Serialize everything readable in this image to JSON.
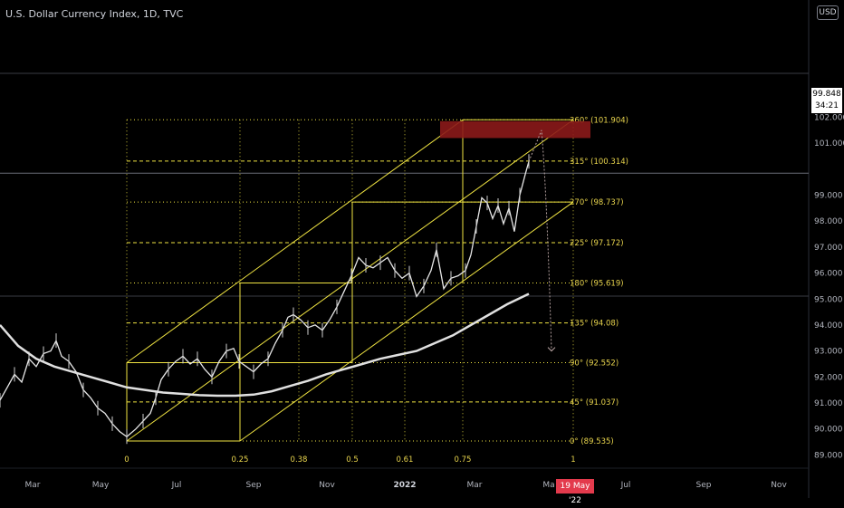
{
  "header": {
    "title": "U.S. Dollar Currency Index, 1D, TVC",
    "currency": "USD"
  },
  "price_marker": {
    "price": "99.848",
    "countdown": "34:21"
  },
  "date_marker": "19 May '22",
  "colors": {
    "background": "#000000",
    "fib_lines": "#f0e442",
    "ma_line": "#e0e0e0",
    "zone": "#8b1a1a",
    "projection": "#b5a1a0"
  },
  "chart_data": {
    "type": "line",
    "title": "U.S. Dollar Currency Index, 1D, TVC",
    "xlabel": "",
    "ylabel": "",
    "x_tick_labels": [
      "Mar",
      "May",
      "Jul",
      "Sep",
      "Nov",
      "2022",
      "Mar",
      "Ma",
      "Jul",
      "Sep",
      "Nov"
    ],
    "y_tick_labels": [
      "102.000",
      "101.000",
      "100.000",
      "99.000",
      "98.000",
      "97.000",
      "96.000",
      "95.000",
      "94.000",
      "93.000",
      "92.000",
      "91.000",
      "90.000",
      "89.000"
    ],
    "ylim": [
      88.85,
      102.5
    ],
    "fib_time_labels": [
      "0",
      "0.25",
      "0.38",
      "0.5",
      "0.61",
      "0.75",
      "1"
    ],
    "gann_levels": [
      {
        "label": "360° (101.904)",
        "value": 101.904
      },
      {
        "label": "315° (100.314)",
        "value": 100.314
      },
      {
        "label": "270° (98.737)",
        "value": 98.737
      },
      {
        "label": "225° (97.172)",
        "value": 97.172
      },
      {
        "label": "180° (95.619)",
        "value": 95.619
      },
      {
        "label": "135° (94.08)",
        "value": 94.08
      },
      {
        "label": "90° (92.552)",
        "value": 92.552
      },
      {
        "label": "45° (91.037)",
        "value": 91.037
      },
      {
        "label": "0° (89.535)",
        "value": 89.535
      }
    ],
    "resistance_zone": {
      "from": 101.2,
      "to": 101.85
    },
    "projected_target": 93.0,
    "series": [
      {
        "values": [
          [
            0,
            91.1
          ],
          [
            8,
            91.6
          ],
          [
            16,
            92.1
          ],
          [
            24,
            91.8
          ],
          [
            32,
            92.7
          ],
          [
            40,
            92.4
          ],
          [
            48,
            92.9
          ],
          [
            56,
            93.0
          ],
          [
            62,
            93.4
          ],
          [
            68,
            92.8
          ],
          [
            76,
            92.6
          ],
          [
            84,
            92.2
          ],
          [
            92,
            91.5
          ],
          [
            100,
            91.2
          ],
          [
            108,
            90.8
          ],
          [
            116,
            90.6
          ],
          [
            124,
            90.2
          ],
          [
            132,
            89.9
          ],
          [
            140,
            89.7
          ],
          [
            150,
            90.0
          ],
          [
            158,
            90.3
          ],
          [
            166,
            90.6
          ],
          [
            172,
            91.2
          ],
          [
            178,
            91.9
          ],
          [
            186,
            92.3
          ],
          [
            194,
            92.6
          ],
          [
            202,
            92.8
          ],
          [
            210,
            92.5
          ],
          [
            218,
            92.7
          ],
          [
            226,
            92.3
          ],
          [
            234,
            92.0
          ],
          [
            242,
            92.6
          ],
          [
            250,
            93.0
          ],
          [
            258,
            93.1
          ],
          [
            264,
            92.6
          ],
          [
            272,
            92.4
          ],
          [
            280,
            92.2
          ],
          [
            288,
            92.5
          ],
          [
            296,
            92.7
          ],
          [
            304,
            93.3
          ],
          [
            312,
            93.8
          ],
          [
            318,
            94.3
          ],
          [
            324,
            94.4
          ],
          [
            332,
            94.2
          ],
          [
            340,
            93.9
          ],
          [
            348,
            94.0
          ],
          [
            356,
            93.8
          ],
          [
            364,
            94.2
          ],
          [
            372,
            94.7
          ],
          [
            380,
            95.3
          ],
          [
            388,
            95.9
          ],
          [
            396,
            96.6
          ],
          [
            404,
            96.3
          ],
          [
            412,
            96.2
          ],
          [
            420,
            96.4
          ],
          [
            428,
            96.6
          ],
          [
            436,
            96.1
          ],
          [
            444,
            95.8
          ],
          [
            452,
            96.0
          ],
          [
            460,
            95.1
          ],
          [
            468,
            95.5
          ],
          [
            476,
            96.1
          ],
          [
            482,
            96.9
          ],
          [
            490,
            95.4
          ],
          [
            498,
            95.8
          ],
          [
            506,
            95.9
          ],
          [
            514,
            96.1
          ],
          [
            520,
            96.7
          ],
          [
            526,
            97.8
          ],
          [
            532,
            98.9
          ],
          [
            538,
            98.7
          ],
          [
            544,
            98.1
          ],
          [
            550,
            98.6
          ],
          [
            556,
            97.9
          ],
          [
            562,
            98.5
          ],
          [
            568,
            97.6
          ],
          [
            574,
            99.0
          ],
          [
            580,
            99.8
          ],
          [
            584,
            100.3
          ]
        ]
      },
      {
        "values": [
          [
            0,
            94.0
          ],
          [
            20,
            93.2
          ],
          [
            40,
            92.7
          ],
          [
            60,
            92.4
          ],
          [
            80,
            92.2
          ],
          [
            100,
            92.0
          ],
          [
            120,
            91.8
          ],
          [
            140,
            91.6
          ],
          [
            160,
            91.5
          ],
          [
            180,
            91.4
          ],
          [
            200,
            91.35
          ],
          [
            220,
            91.3
          ],
          [
            240,
            91.28
          ],
          [
            260,
            91.28
          ],
          [
            280,
            91.32
          ],
          [
            300,
            91.45
          ],
          [
            320,
            91.65
          ],
          [
            340,
            91.85
          ],
          [
            360,
            92.1
          ],
          [
            380,
            92.3
          ],
          [
            400,
            92.5
          ],
          [
            420,
            92.7
          ],
          [
            440,
            92.85
          ],
          [
            460,
            93.0
          ],
          [
            480,
            93.3
          ],
          [
            500,
            93.6
          ],
          [
            520,
            94.0
          ],
          [
            540,
            94.4
          ],
          [
            560,
            94.8
          ],
          [
            584,
            95.2
          ]
        ]
      }
    ]
  }
}
